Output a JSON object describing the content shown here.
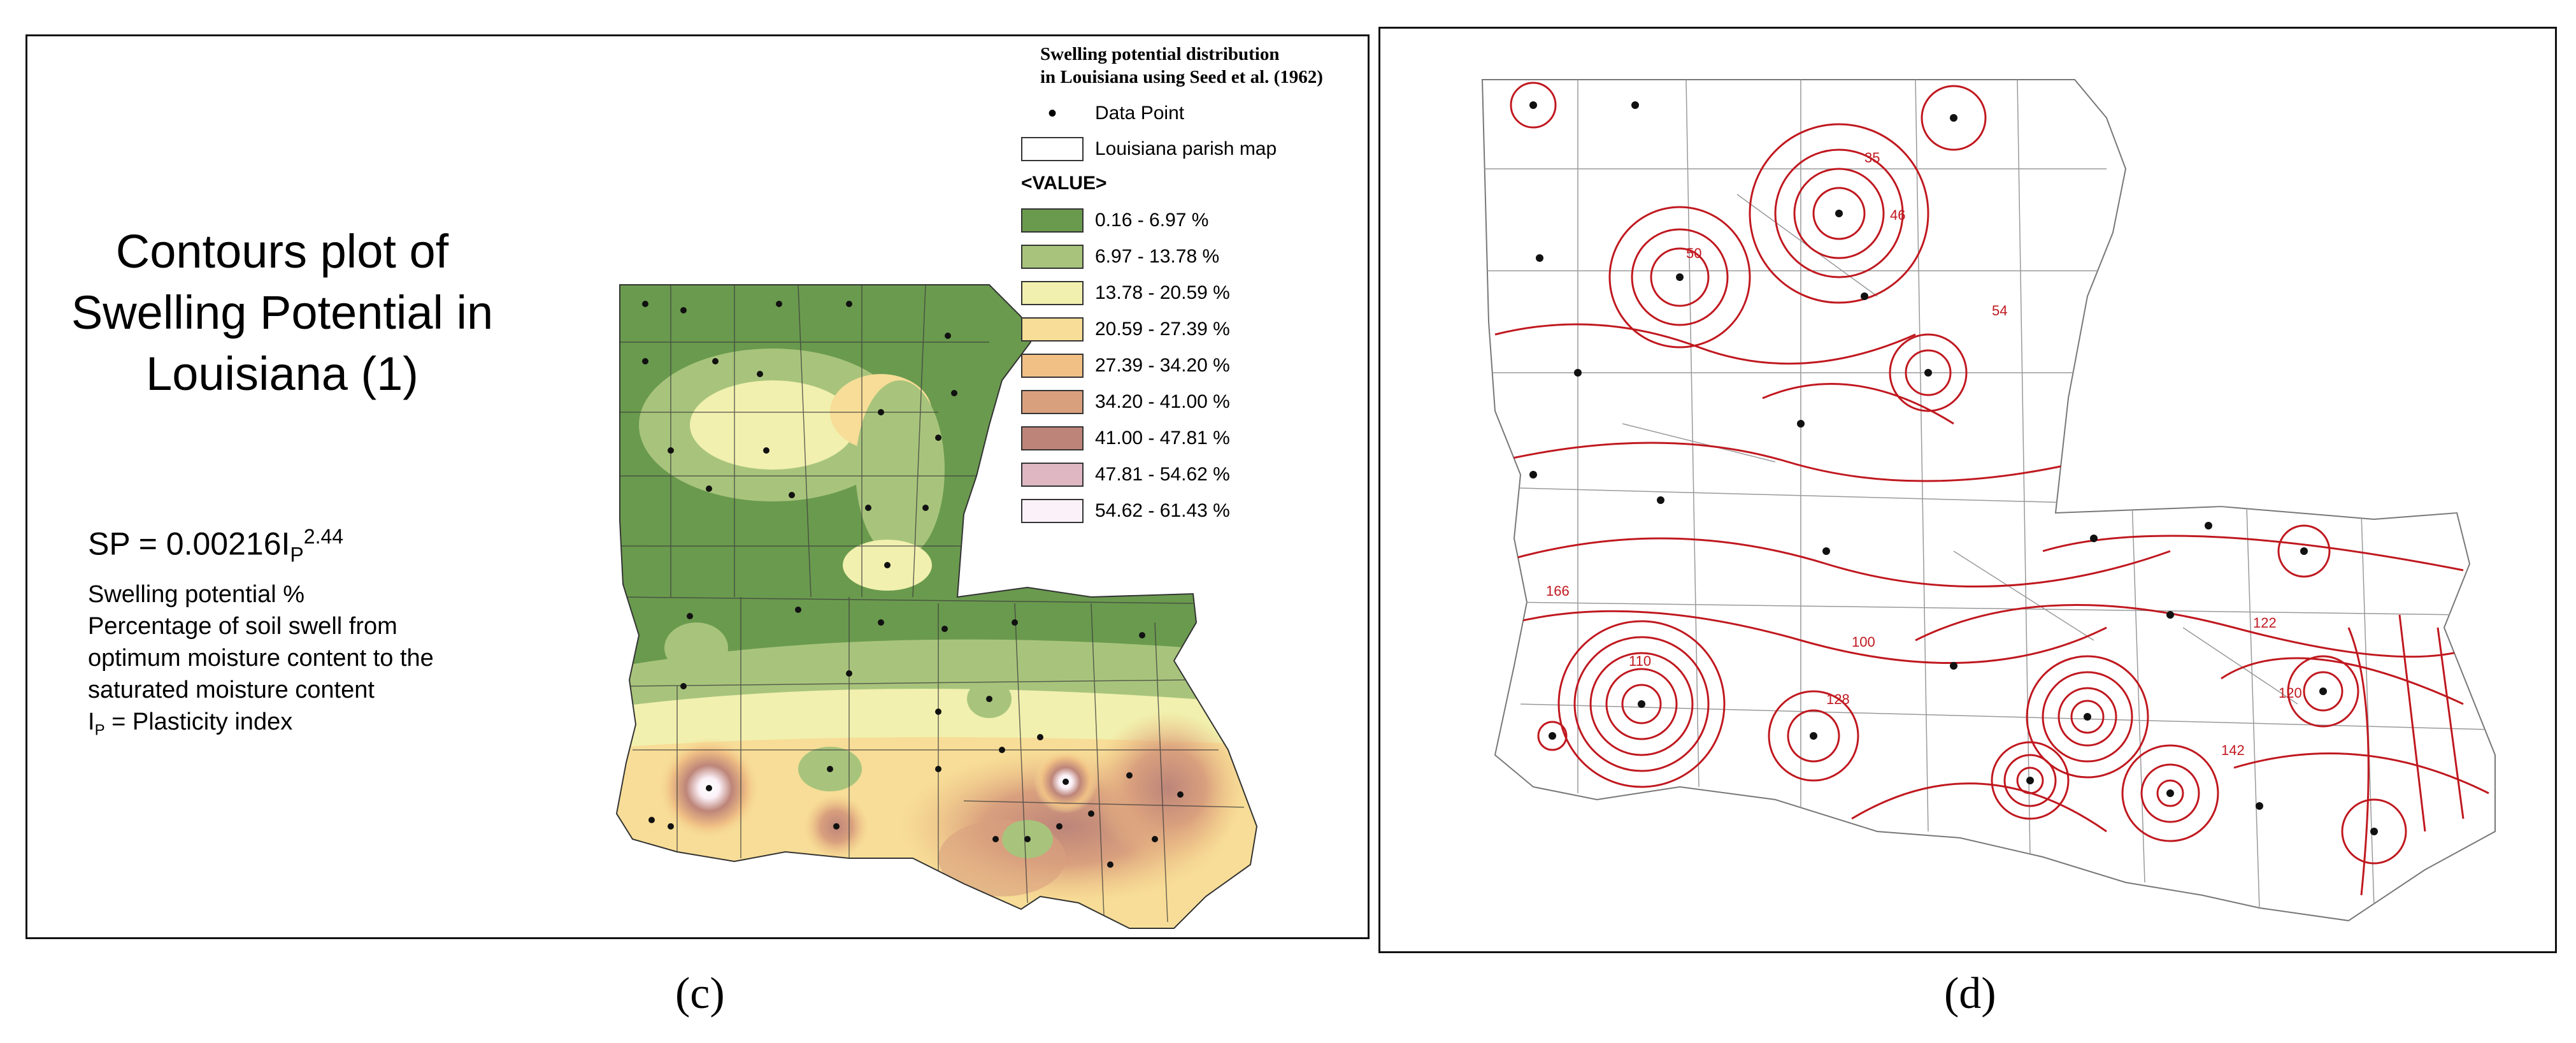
{
  "panel_c": {
    "title": "Contours plot of Swelling Potential in Louisiana (1)",
    "formula_main": "SP = 0.00216I",
    "formula_sub": "P",
    "formula_exp": "2.44",
    "desc_line1": "Swelling potential %",
    "desc_line2": "Percentage of soil swell from",
    "desc_line3": "optimum moisture content to the",
    "desc_line4": "saturated moisture content",
    "desc_line5_main": "I",
    "desc_line5_sub": "P",
    "desc_line5_rest": " = Plasticity index",
    "legend": {
      "title_line1": "Swelling potential distribution",
      "title_line2": "in Louisiana using Seed et al. (1962)",
      "data_point_label": "Data Point",
      "parish_map_label": "Louisiana parish map",
      "value_header": "<VALUE>",
      "classes": [
        {
          "label": "0.16 - 6.97 %",
          "color": "#6a9a4e"
        },
        {
          "label": "6.97 - 13.78 %",
          "color": "#a8c47c"
        },
        {
          "label": "13.78 - 20.59 %",
          "color": "#f1f0ae"
        },
        {
          "label": "20.59 - 27.39 %",
          "color": "#f7dd97"
        },
        {
          "label": "27.39 - 34.20 %",
          "color": "#f0c085"
        },
        {
          "label": "34.20 - 41.00 %",
          "color": "#d9a07e"
        },
        {
          "label": "41.00 - 47.81 %",
          "color": "#bd8579"
        },
        {
          "label": "47.81 - 54.62 %",
          "color": "#deb7c3"
        },
        {
          "label": "54.62 - 61.43 %",
          "color": "#fbf1f8"
        }
      ]
    },
    "caption": "(c)"
  },
  "panel_d": {
    "contour_labels": [
      "166",
      "122",
      "110",
      "35",
      "54",
      "50",
      "142",
      "46",
      "100",
      "120",
      "128"
    ],
    "contour_color": "#c0181f",
    "caption": "(d)"
  }
}
